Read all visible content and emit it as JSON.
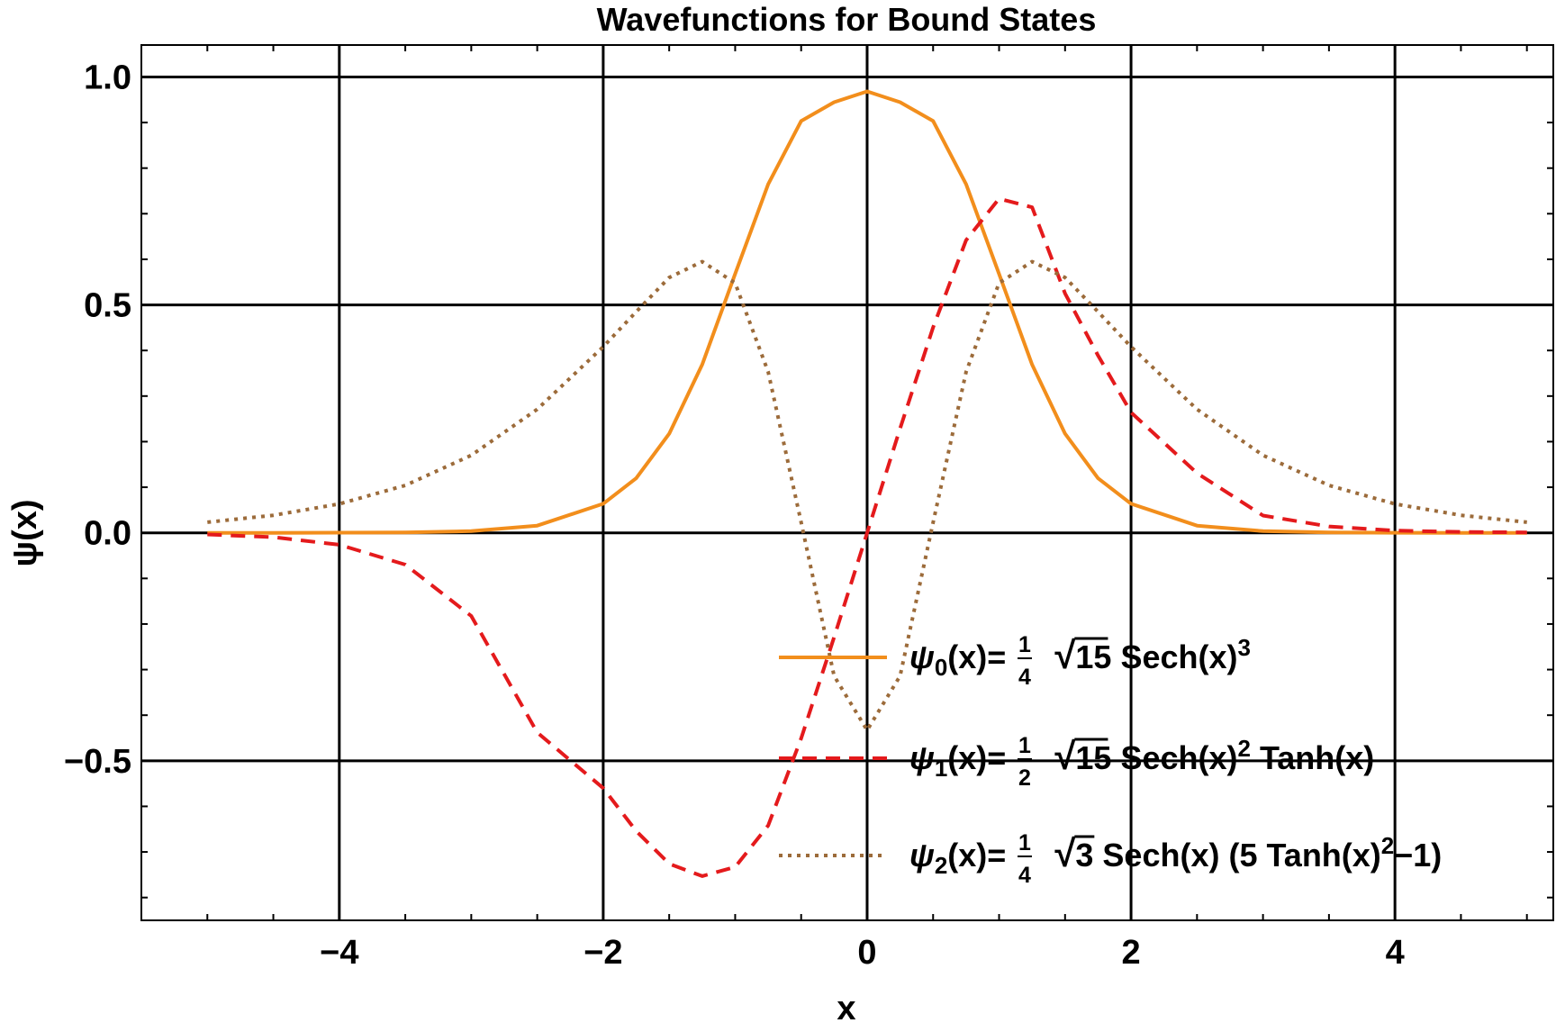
{
  "chart_data": {
    "type": "line",
    "title": "Wavefunctions for Bound States",
    "xlabel": "x",
    "ylabel": "ψ(x)",
    "xlim": [
      -5.5,
      5.2
    ],
    "ylim": [
      -0.85,
      1.07
    ],
    "xticks": [
      -4,
      -2,
      0,
      2,
      4
    ],
    "xtick_labels": [
      "−4",
      "−2",
      "0",
      "2",
      "4"
    ],
    "yticks": [
      -0.5,
      0.0,
      0.5,
      1.0
    ],
    "ytick_labels": [
      "−0.5",
      "0.0",
      "0.5",
      "1.0"
    ],
    "grid": true,
    "legend_position": "bottom-right",
    "x": [
      -5.0,
      -4.5,
      -4.0,
      -3.5,
      -3.0,
      -2.5,
      -2.0,
      -1.75,
      -1.5,
      -1.25,
      -1.0,
      -0.75,
      -0.5,
      -0.25,
      0.0,
      0.25,
      0.5,
      0.75,
      1.0,
      1.25,
      1.5,
      1.75,
      2.0,
      2.5,
      3.0,
      3.5,
      4.0,
      4.5,
      5.0
    ],
    "series": [
      {
        "name": "ψ0(x)= 1/4 √15 Sech(x)^3",
        "color": "#f28e1c",
        "style": "solid",
        "values": [
          0.0,
          0.0,
          0.0003,
          0.0009,
          0.0038,
          0.0158,
          0.0637,
          0.1197,
          0.2174,
          0.369,
          0.5679,
          0.7647,
          0.9033,
          0.9446,
          0.9682,
          0.9446,
          0.9033,
          0.7647,
          0.5679,
          0.369,
          0.2174,
          0.1197,
          0.0637,
          0.0158,
          0.0038,
          0.0009,
          0.0002,
          0.0,
          0.0
        ]
      },
      {
        "name": "ψ1(x)= 1/2 √15 Sech(x)^2 Tanh(x)",
        "color": "#e41a1c",
        "style": "dashed",
        "values": [
          -0.0035,
          -0.0095,
          -0.026,
          -0.0698,
          -0.1825,
          -0.4379,
          -0.56,
          -0.654,
          -0.726,
          -0.753,
          -0.733,
          -0.642,
          -0.451,
          -0.229,
          0.0,
          0.229,
          0.451,
          0.642,
          0.733,
          0.714,
          0.525,
          0.389,
          0.264,
          0.131,
          0.038,
          0.014,
          0.005,
          0.002,
          0.001
        ]
      },
      {
        "name": "ψ2(x)= 1/4 √3 Sech(x) (5 Tanh(x)^2−1)",
        "color": "#9c6b3a",
        "style": "dotted",
        "values": [
          0.0233,
          0.0384,
          0.0633,
          0.104,
          0.17,
          0.271,
          0.408,
          0.485,
          0.56,
          0.595,
          0.548,
          0.353,
          0.023,
          -0.314,
          -0.433,
          -0.314,
          0.023,
          0.353,
          0.548,
          0.595,
          0.56,
          0.485,
          0.408,
          0.271,
          0.17,
          0.104,
          0.0633,
          0.0384,
          0.0233
        ]
      }
    ],
    "legend": [
      {
        "psi": "ψ",
        "sub": "0",
        "lhs": "(x)=",
        "num": "1",
        "den": "4",
        "root": "15",
        "rest": "Sech(x)",
        "sup": "3",
        "tail": ""
      },
      {
        "psi": "ψ",
        "sub": "1",
        "lhs": "(x)=",
        "num": "1",
        "den": "2",
        "root": "15",
        "rest": "Sech(x)",
        "sup": "2",
        "tail": " Tanh(x)"
      },
      {
        "psi": "ψ",
        "sub": "2",
        "lhs": "(x)=",
        "num": "1",
        "den": "4",
        "root": "3",
        "rest": "Sech(x) (5 Tanh(x)",
        "sup": "2",
        "tail": "−1)"
      }
    ]
  }
}
